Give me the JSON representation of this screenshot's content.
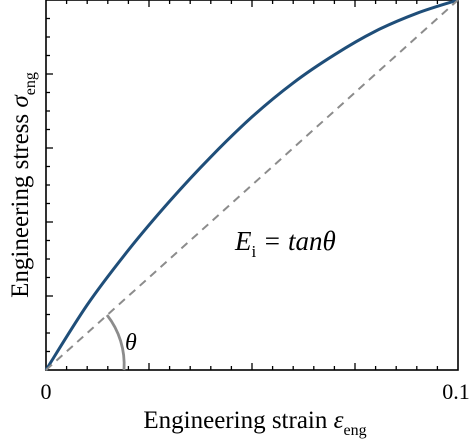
{
  "chart_data": {
    "type": "line",
    "xlabel": {
      "main": "Engineering strain ",
      "symbol": "ε",
      "sub": "eng"
    },
    "ylabel": {
      "main": "Engineering stress ",
      "symbol": "σ",
      "sub": "eng"
    },
    "xlim": [
      0,
      0.1
    ],
    "ylim": [
      0,
      1
    ],
    "x_tick_labels": [
      "0",
      "0.1"
    ],
    "series": [
      {
        "style": "solid",
        "color": "#1f4e79",
        "x": [
          0,
          0.01,
          0.02,
          0.03,
          0.04,
          0.05,
          0.06,
          0.07,
          0.08,
          0.09,
          0.1
        ],
        "y": [
          0,
          0.176,
          0.324,
          0.456,
          0.576,
          0.684,
          0.776,
          0.852,
          0.916,
          0.964,
          1.0
        ]
      },
      {
        "style": "dashed",
        "color": "#8c8c8c",
        "x": [
          0,
          0.1
        ],
        "y": [
          0,
          1
        ]
      }
    ],
    "annotations": {
      "equation": {
        "E": "E",
        "sub": "i",
        "rest": " = tanθ"
      },
      "angle_label": "θ"
    }
  }
}
